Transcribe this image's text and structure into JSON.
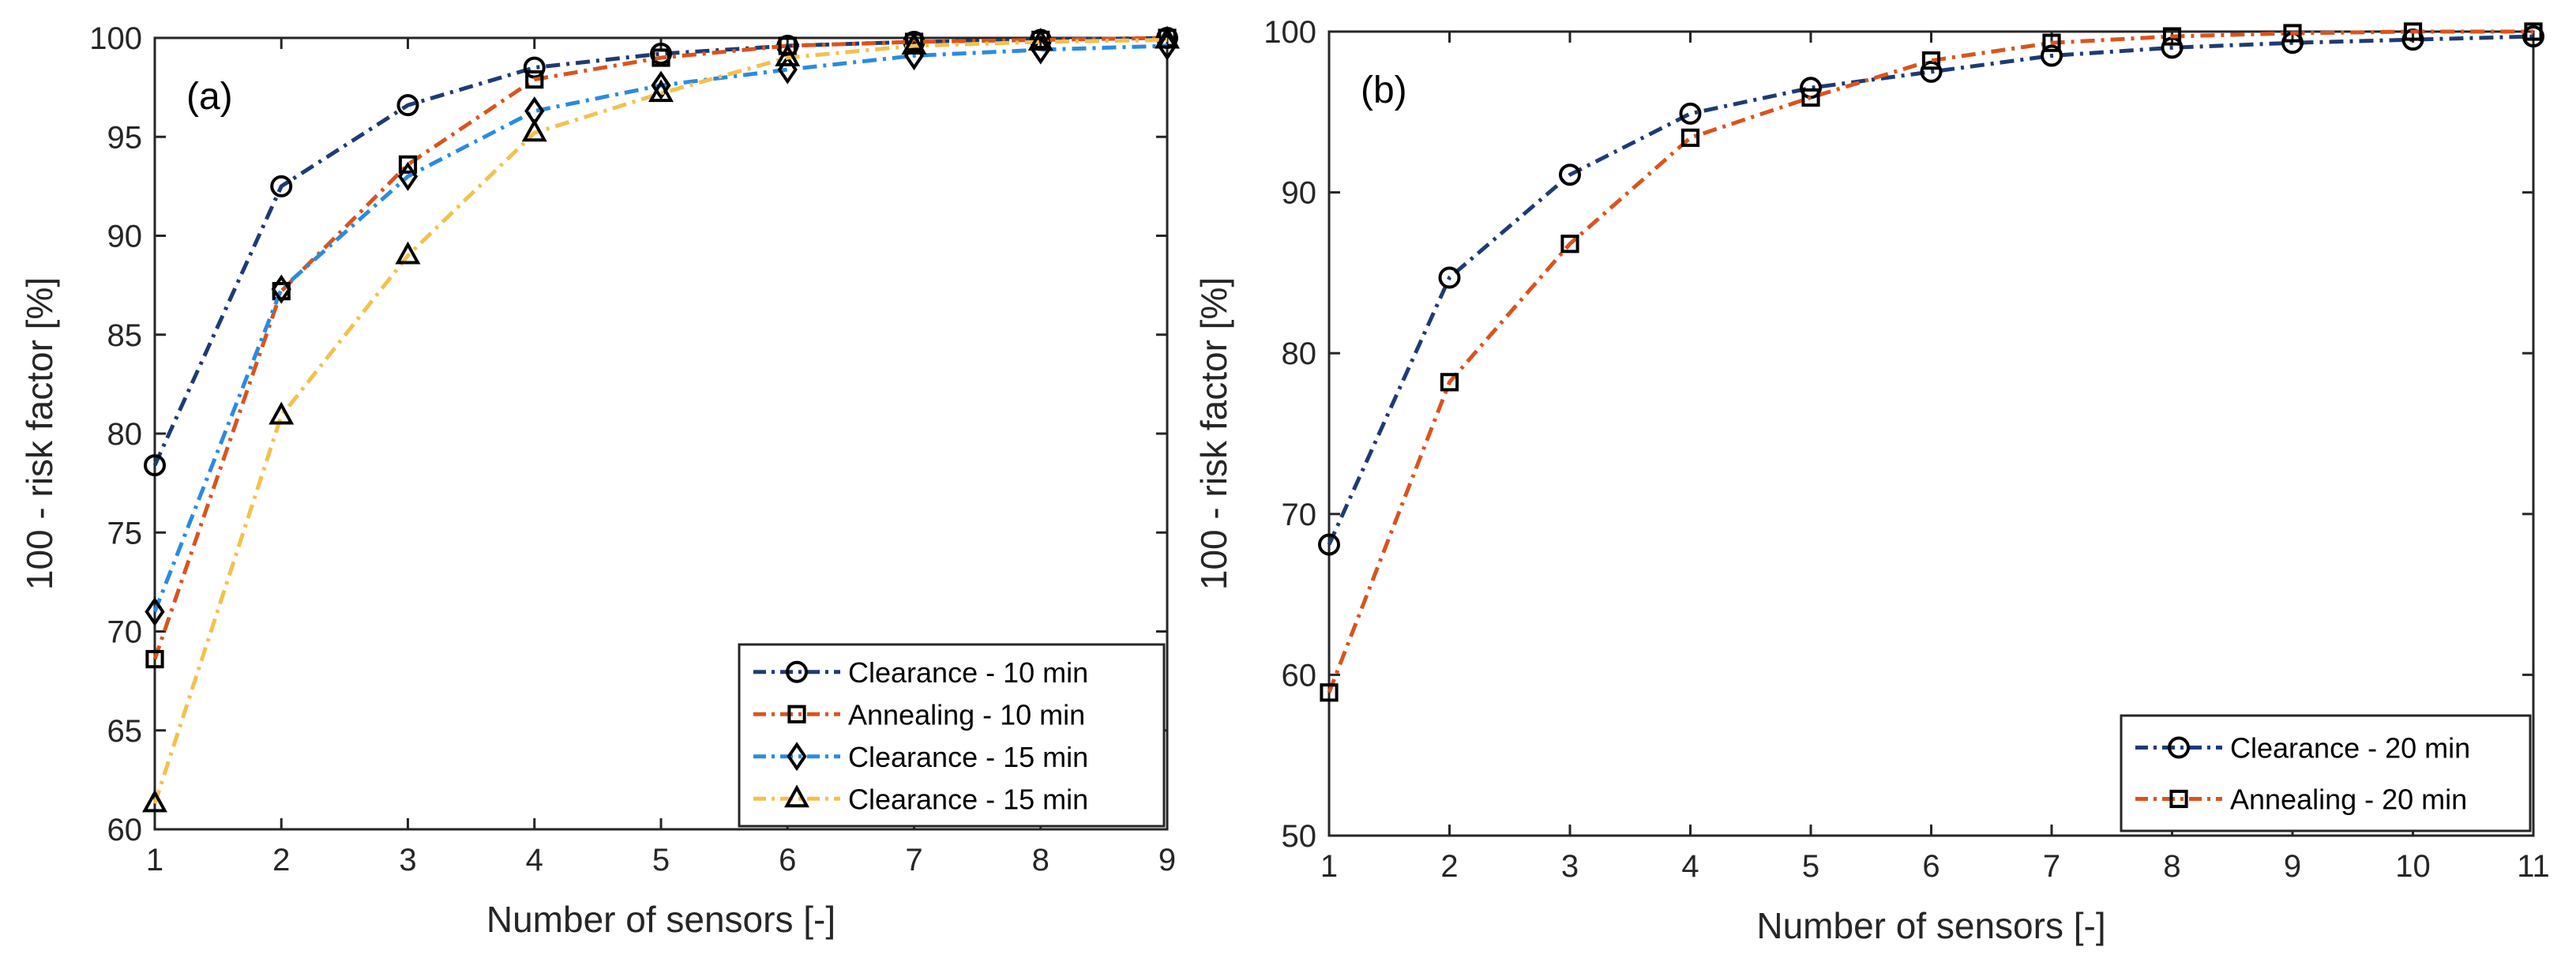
{
  "chart_data": [
    {
      "type": "line",
      "panel_label": "(a)",
      "title": "",
      "xlabel": "Number of sensors [-]",
      "ylabel": "100 - risk factor [%]",
      "xlim": [
        1,
        9
      ],
      "ylim": [
        60,
        100
      ],
      "xticks": [
        1,
        2,
        3,
        4,
        5,
        6,
        7,
        8,
        9
      ],
      "yticks": [
        60,
        65,
        70,
        75,
        80,
        85,
        90,
        95,
        100
      ],
      "legend_position": "bottom-right",
      "grid": false,
      "series": [
        {
          "name": "Clearance - 10 min",
          "color": "#1f3b73",
          "marker": "circle",
          "x": [
            1,
            2,
            3,
            4,
            5,
            6,
            7,
            8,
            9
          ],
          "values": [
            78.4,
            92.5,
            96.6,
            98.5,
            99.2,
            99.6,
            99.8,
            99.9,
            100.0
          ]
        },
        {
          "name": "Annealing - 10 min",
          "color": "#d9541e",
          "marker": "square",
          "x": [
            1,
            2,
            3,
            4,
            5,
            6,
            7,
            8,
            9
          ],
          "values": [
            68.6,
            87.2,
            93.6,
            97.9,
            99.0,
            99.6,
            99.8,
            99.9,
            100.0
          ]
        },
        {
          "name": "Clearance - 15 min",
          "color": "#2a8be0",
          "marker": "diamond",
          "x": [
            1,
            2,
            3,
            4,
            5,
            6,
            7,
            8,
            9
          ],
          "values": [
            71.0,
            87.3,
            93.0,
            96.3,
            97.6,
            98.4,
            99.1,
            99.4,
            99.6
          ]
        },
        {
          "name": "Clearance - 15 min",
          "color": "#f2c14e",
          "marker": "triangle",
          "x": [
            1,
            2,
            3,
            4,
            5,
            6,
            7,
            8,
            9
          ],
          "values": [
            61.3,
            80.9,
            89.0,
            95.2,
            97.2,
            99.0,
            99.6,
            99.8,
            99.9
          ]
        }
      ]
    },
    {
      "type": "line",
      "panel_label": "(b)",
      "title": "",
      "xlabel": "Number of sensors [-]",
      "ylabel": "100 - risk factor [%]",
      "xlim": [
        1,
        11
      ],
      "ylim": [
        50,
        100
      ],
      "xticks": [
        1,
        2,
        3,
        4,
        5,
        6,
        7,
        8,
        9,
        10,
        11
      ],
      "yticks": [
        50,
        60,
        70,
        80,
        90,
        100
      ],
      "legend_position": "bottom-right",
      "grid": false,
      "series": [
        {
          "name": "Clearance - 20 min",
          "color": "#1f3b73",
          "marker": "circle",
          "x": [
            1,
            2,
            3,
            4,
            5,
            6,
            7,
            8,
            9,
            10,
            11
          ],
          "values": [
            68.1,
            84.7,
            91.1,
            94.9,
            96.5,
            97.5,
            98.5,
            99.0,
            99.3,
            99.5,
            99.7
          ]
        },
        {
          "name": "Annealing - 20 min",
          "color": "#d9541e",
          "marker": "square",
          "x": [
            1,
            2,
            3,
            4,
            5,
            6,
            7,
            8,
            9,
            10,
            11
          ],
          "values": [
            58.9,
            78.2,
            86.8,
            93.4,
            95.9,
            98.2,
            99.3,
            99.7,
            99.9,
            100.0,
            100.0
          ]
        }
      ]
    }
  ]
}
